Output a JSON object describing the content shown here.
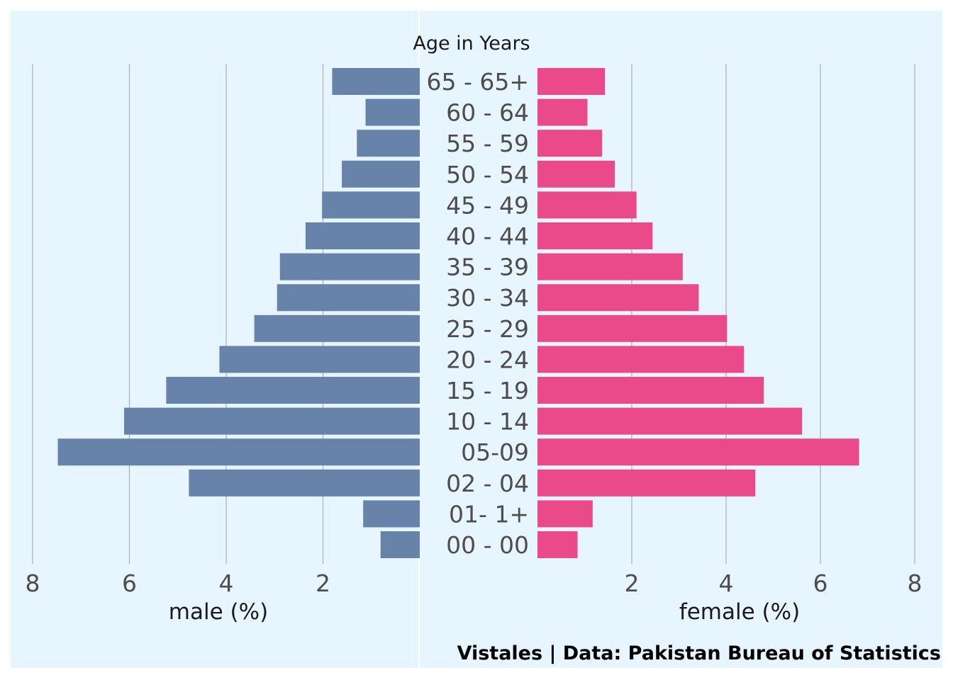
{
  "chart_data": {
    "type": "bar",
    "orientation": "horizontal",
    "subtype": "population-pyramid",
    "center_label": "Age in Years",
    "caption": "Vistales | Data: Pakistan Bureau of Statistics",
    "categories": [
      "00 - 00",
      "01- 1+",
      "02 - 04",
      "05-09",
      "10 - 14",
      "15 - 19",
      "20 - 24",
      "25 - 29",
      "30 - 34",
      "35 - 39",
      "40 - 44",
      "45 - 49",
      "50 - 54",
      "55 - 59",
      "60 - 64",
      "65 - 65+"
    ],
    "series": [
      {
        "name": "male",
        "axis_label": "male (%)",
        "color": "#6783aa",
        "values": [
          0.81,
          1.17,
          4.77,
          7.48,
          6.11,
          5.24,
          4.14,
          3.42,
          2.95,
          2.89,
          2.36,
          2.02,
          1.61,
          1.3,
          1.12,
          1.81
        ]
      },
      {
        "name": "female",
        "axis_label": "female (%)",
        "color": "#ea4a8a",
        "values": [
          0.85,
          1.17,
          4.62,
          6.82,
          5.61,
          4.8,
          4.38,
          4.02,
          3.42,
          3.08,
          2.44,
          2.1,
          1.64,
          1.37,
          1.06,
          1.43
        ]
      }
    ],
    "xlim": [
      0,
      8
    ],
    "xticks": [
      2,
      4,
      6,
      8
    ],
    "grid": "vertical",
    "background": "#e6f5ff",
    "gridline_color": "#b3b3b3"
  }
}
